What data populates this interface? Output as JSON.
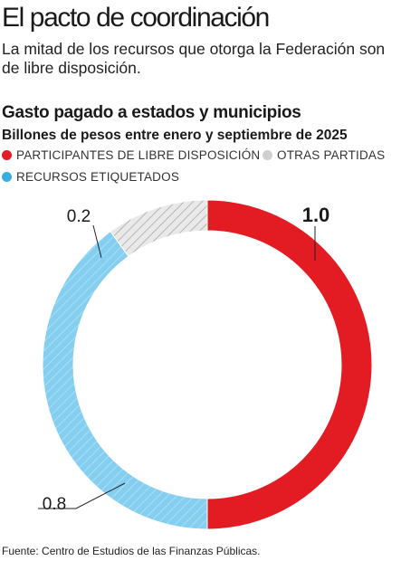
{
  "headline": "El pacto de coordinación",
  "deck": "La mitad de los recursos que otorga la Federación son de libre disposición.",
  "chart_data": {
    "type": "pie",
    "title": "Gasto pagado a estados y municipios",
    "subtitle": "Billones de pesos entre enero y septiembre de 2025",
    "legend_placement": "top",
    "series": [
      {
        "name": "PARTICIPANTES DE LIBRE DISPOSICIÓN",
        "value": 1.0,
        "label": "1.0",
        "color": "#e31c23",
        "hatched": false
      },
      {
        "name": "RECURSOS ETIQUETADOS",
        "value": 0.8,
        "label": "0.8",
        "color": "#7fcdee",
        "hatched": true
      },
      {
        "name": "OTRAS PARTIDAS",
        "value": 0.2,
        "label": "0.2",
        "color": "#cfcfcf",
        "hatched": true
      }
    ]
  },
  "legend": [
    {
      "label": "PARTICIPANTES DE LIBRE DISPOSICIÓN",
      "color": "#e31c23"
    },
    {
      "label": "OTRAS PARTIDAS",
      "color": "#cfcfcf"
    },
    {
      "label": "RECURSOS ETIQUETADOS",
      "color": "#3aaee0"
    }
  ],
  "source": "Fuente: Centro de Estudios de las Finanzas Públicas."
}
